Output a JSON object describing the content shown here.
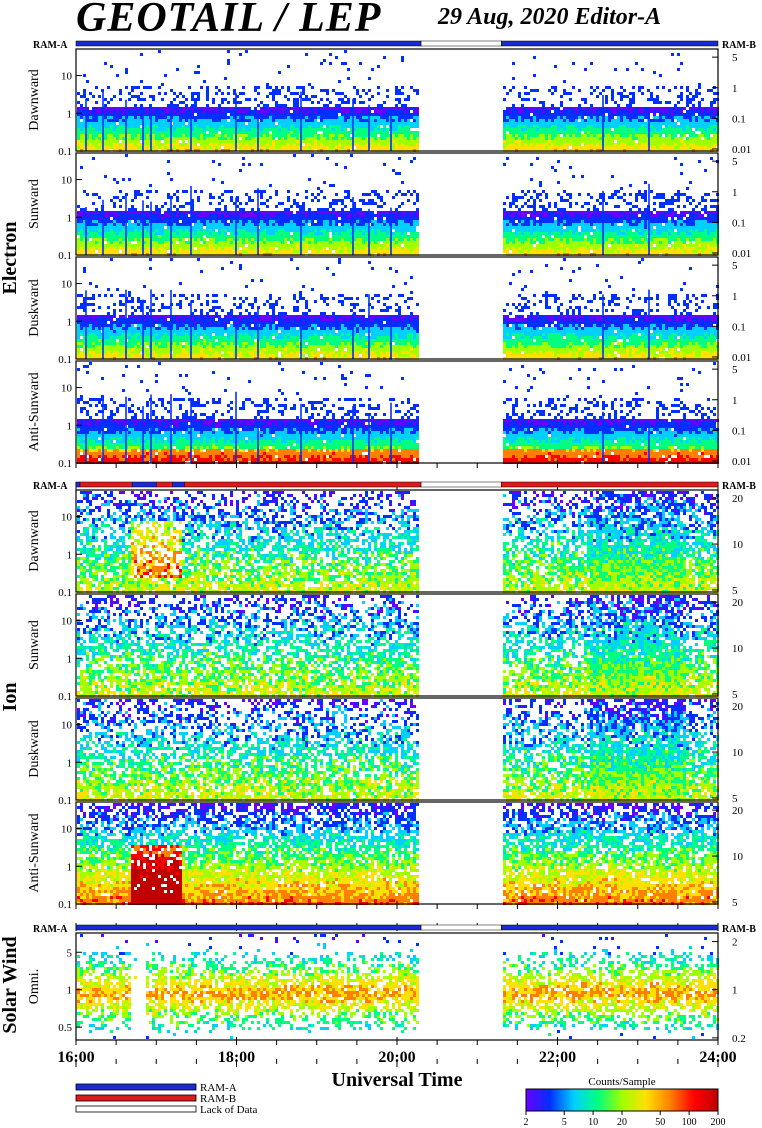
{
  "title": "GEOTAIL / LEP",
  "subtitle": "29 Aug, 2020   Editor-A",
  "sections": [
    {
      "label": "Electron",
      "mode_left": "RAM-A",
      "mode_right": "RAM-B",
      "panels": [
        {
          "label": "Dawnward",
          "left_ticks": [
            "10",
            "1",
            "0.1"
          ],
          "right_ticks": [
            "5",
            "1",
            "0.1",
            "0.01"
          ]
        },
        {
          "label": "Sunward",
          "left_ticks": [
            "10",
            "1",
            "0.1"
          ],
          "right_ticks": [
            "5",
            "1",
            "0.1",
            "0.01"
          ]
        },
        {
          "label": "Duskward",
          "left_ticks": [
            "10",
            "1",
            "0.1"
          ],
          "right_ticks": [
            "5",
            "1",
            "0.1",
            "0.01"
          ]
        },
        {
          "label": "Anti-Sunward",
          "left_ticks": [
            "10",
            "1",
            "0.1"
          ],
          "right_ticks": [
            "5",
            "1",
            "0.1",
            "0.01"
          ]
        }
      ]
    },
    {
      "label": "Ion",
      "mode_left": "RAM-A",
      "mode_right": "RAM-B",
      "panels": [
        {
          "label": "Dawnward",
          "left_ticks": [
            "10",
            "1",
            "0.1"
          ],
          "right_ticks": [
            "20",
            "10",
            "5"
          ]
        },
        {
          "label": "Sunward",
          "left_ticks": [
            "10",
            "1",
            "0.1"
          ],
          "right_ticks": [
            "20",
            "10",
            "5"
          ]
        },
        {
          "label": "Duskward",
          "left_ticks": [
            "10",
            "1",
            "0.1"
          ],
          "right_ticks": [
            "20",
            "10",
            "5"
          ]
        },
        {
          "label": "Anti-Sunward",
          "left_ticks": [
            "10",
            "1",
            "0.1"
          ],
          "right_ticks": [
            "20",
            "10",
            "5"
          ]
        }
      ]
    },
    {
      "label": "Solar Wind",
      "mode_left": "RAM-A",
      "mode_right": "RAM-B",
      "panels": [
        {
          "label": "Omni.",
          "left_ticks": [
            "5",
            "1",
            "0.5"
          ],
          "right_ticks": [
            "2",
            "1",
            "0.2"
          ]
        }
      ]
    }
  ],
  "xlabel": "Universal Time",
  "x_ticks": [
    "16:00",
    "18:00",
    "20:00",
    "22:00",
    "24:00"
  ],
  "legend": [
    {
      "label": "RAM-A",
      "color": "#1a2bd6"
    },
    {
      "label": "RAM-B",
      "color": "#e01a1a"
    },
    {
      "label": "Lack of Data",
      "color": "#ffffff"
    }
  ],
  "colorbar": {
    "title": "Counts/Sample",
    "ticks": [
      "2",
      "5",
      "10",
      "20",
      "50",
      "100",
      "200"
    ],
    "colors": [
      "#6a00ff",
      "#0030ff",
      "#00d0ff",
      "#00ff80",
      "#a0ff00",
      "#ffe000",
      "#ff8000",
      "#ff0000",
      "#c00000"
    ]
  },
  "chart_data": {
    "type": "heatmap",
    "title": "GEOTAIL / LEP",
    "xlabel": "Universal Time",
    "x_range_hours": [
      16,
      24
    ],
    "data_gap_hours": [
      20.3,
      21.3
    ],
    "log_scale": true,
    "colorbar_range_counts": [
      2,
      200
    ],
    "electron_ram_mode": [
      {
        "start_hour": 16.0,
        "end_hour": 20.3,
        "mode": "RAM-A"
      },
      {
        "start_hour": 20.3,
        "end_hour": 21.3,
        "mode": "Lack of Data"
      },
      {
        "start_hour": 21.3,
        "end_hour": 24.0,
        "mode": "RAM-A"
      }
    ],
    "ion_ram_mode": [
      {
        "start_hour": 16.0,
        "end_hour": 16.05,
        "mode": "RAM-A"
      },
      {
        "start_hour": 16.05,
        "end_hour": 16.7,
        "mode": "RAM-B"
      },
      {
        "start_hour": 16.7,
        "end_hour": 17.0,
        "mode": "RAM-A"
      },
      {
        "start_hour": 17.0,
        "end_hour": 17.2,
        "mode": "RAM-B"
      },
      {
        "start_hour": 17.2,
        "end_hour": 17.35,
        "mode": "RAM-A"
      },
      {
        "start_hour": 17.35,
        "end_hour": 20.3,
        "mode": "RAM-B"
      },
      {
        "start_hour": 20.3,
        "end_hour": 21.3,
        "mode": "Lack of Data"
      },
      {
        "start_hour": 21.3,
        "end_hour": 24.0,
        "mode": "RAM-B"
      }
    ],
    "solar_wind_ram_mode": [
      {
        "start_hour": 16.0,
        "end_hour": 20.3,
        "mode": "RAM-A"
      },
      {
        "start_hour": 20.3,
        "end_hour": 21.3,
        "mode": "Lack of Data"
      },
      {
        "start_hour": 21.3,
        "end_hour": 24.0,
        "mode": "RAM-A"
      }
    ]
  }
}
